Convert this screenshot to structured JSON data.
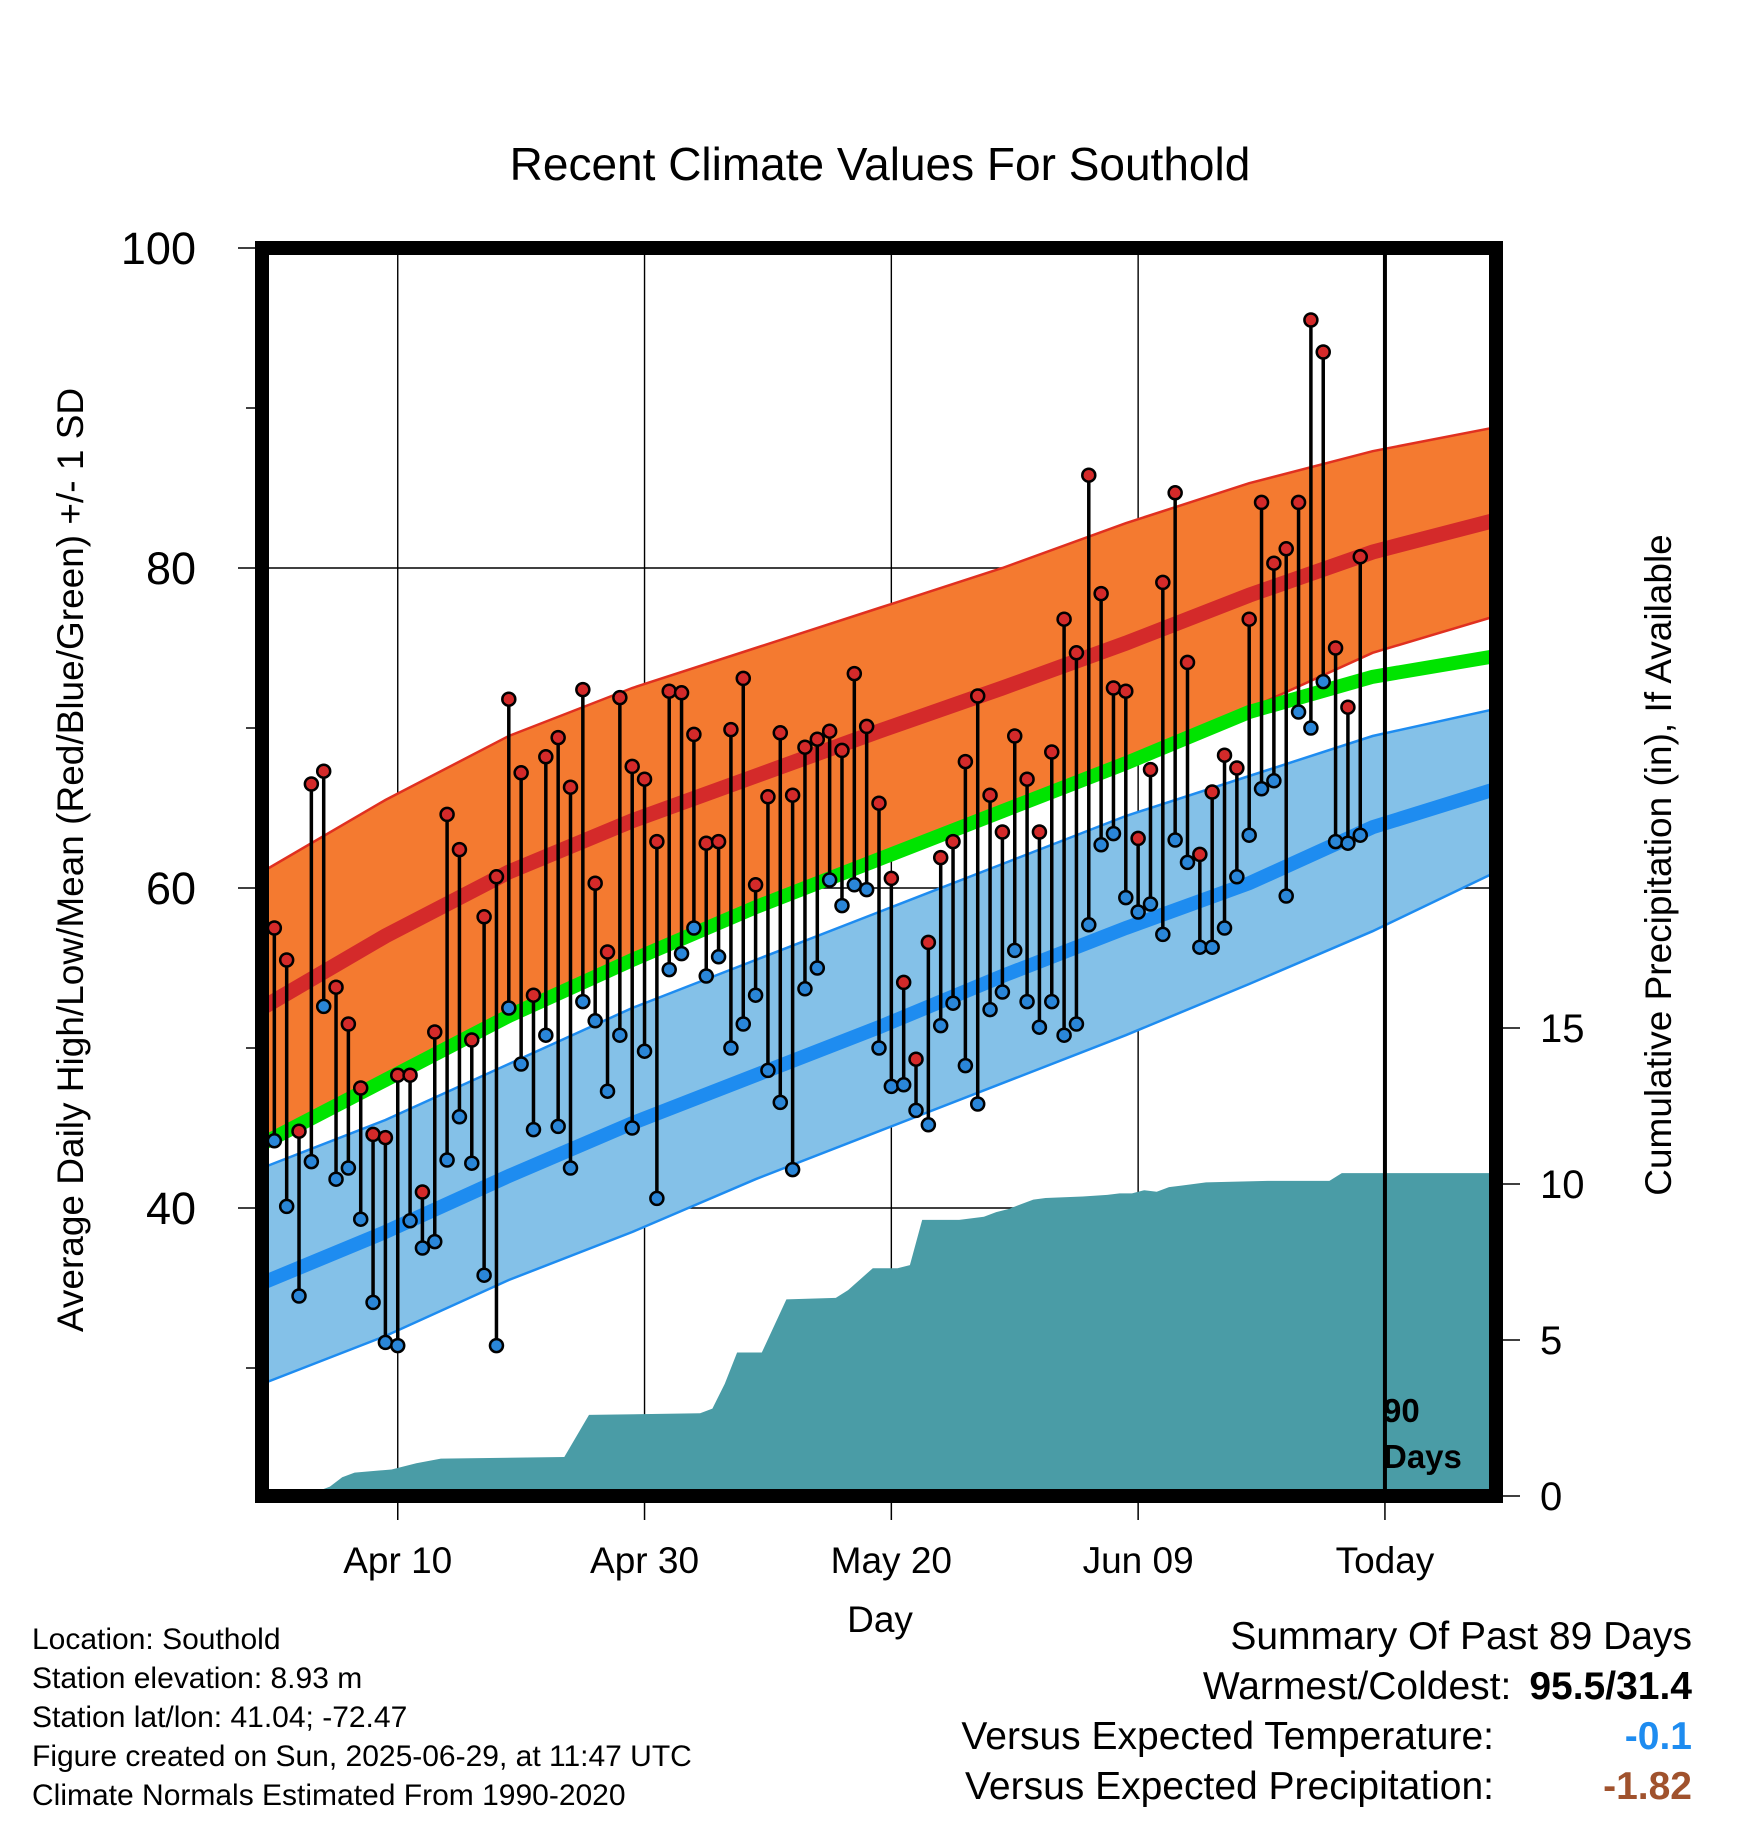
{
  "title": "Recent Climate Values For Southold",
  "y_left_label": "Average Daily High/Low/Mean (Red/Blue/Green) +/- 1 SD",
  "y_right_label": "Cumulative Precipitation (in), If Available",
  "x_label": "Day",
  "today_marker": {
    "line1": "90",
    "line2": "Days"
  },
  "colors": {
    "high_band": "#f47a30",
    "high_mean": "#d42a2a",
    "high_edge": "#e03020",
    "low_band": "#84c1e8",
    "low_mean": "#1e8cf0",
    "low_edge": "#1e8cf0",
    "mean_line": "#00e400",
    "precip": "#4a9ca6",
    "high_dot": "#d42a2a",
    "low_dot": "#2a86d8",
    "temp_anomaly": "#1e8cf0",
    "precip_anomaly": "#a0522d"
  },
  "info": {
    "location": "Location: Southold",
    "elevation": "Station elevation: 8.93 m",
    "latlon": "Station lat/lon: 41.04; -72.47",
    "created": "Figure created on Sun, 2025-06-29, at 11:47 UTC",
    "normals": "Climate Normals Estimated From 1990-2020"
  },
  "summary": {
    "title": "Summary Of Past 89 Days",
    "warm_cold_label": "Warmest/Coldest:",
    "warm_cold_value": "95.5/31.4",
    "temp_label": "Versus Expected Temperature:",
    "temp_value": "-0.1",
    "precip_label": "Versus Expected Precipitation:",
    "precip_value": "-1.82"
  },
  "chart_data": {
    "type": "line",
    "x_ticks": [
      {
        "day": 11,
        "label": "Apr 10"
      },
      {
        "day": 31,
        "label": "Apr 30"
      },
      {
        "day": 51,
        "label": "May 20"
      },
      {
        "day": 71,
        "label": "Jun 09"
      },
      {
        "day": 91,
        "label": "Today"
      }
    ],
    "xlim": [
      0,
      100
    ],
    "y_left": {
      "ylim": [
        22,
        100
      ],
      "ticks": [
        40,
        60,
        80,
        100
      ],
      "minor_ticks": [
        30,
        50,
        70,
        90
      ]
    },
    "y_right": {
      "ylim": [
        0,
        40
      ],
      "ticks": [
        0,
        5,
        10,
        15
      ]
    },
    "normals": {
      "day": [
        0,
        10,
        20,
        30,
        40,
        50,
        60,
        70,
        80,
        90,
        100
      ],
      "high_upper": [
        61.0,
        65.5,
        69.5,
        72.5,
        75.0,
        77.5,
        80.0,
        82.8,
        85.3,
        87.3,
        88.8
      ],
      "high_mean": [
        52.5,
        57.0,
        61.0,
        64.2,
        67.0,
        69.8,
        72.5,
        75.3,
        78.3,
        81.0,
        83.0
      ],
      "high_lower": [
        44.0,
        48.3,
        52.3,
        55.8,
        59.0,
        62.0,
        65.0,
        68.0,
        71.2,
        74.7,
        77.0
      ],
      "mean": [
        44.0,
        48.0,
        52.0,
        55.5,
        58.8,
        61.8,
        64.8,
        67.8,
        71.0,
        73.2,
        74.5
      ],
      "low_upper": [
        42.5,
        45.5,
        49.0,
        52.5,
        55.5,
        58.5,
        61.5,
        64.5,
        67.0,
        69.5,
        71.2
      ],
      "low_mean": [
        35.3,
        38.5,
        42.0,
        45.3,
        48.3,
        51.3,
        54.5,
        57.5,
        60.3,
        63.8,
        66.2
      ],
      "low_lower": [
        29.0,
        32.0,
        35.5,
        38.5,
        41.8,
        44.8,
        47.8,
        50.8,
        54.0,
        57.3,
        61.0
      ]
    },
    "daily": {
      "start_day": 1,
      "high": [
        57.5,
        55.5,
        44.8,
        66.5,
        67.3,
        53.8,
        51.5,
        47.5,
        44.6,
        44.4,
        48.3,
        48.3,
        41.0,
        51.0,
        64.6,
        62.4,
        50.5,
        58.2,
        60.7,
        71.8,
        67.2,
        53.3,
        68.2,
        69.4,
        66.3,
        72.4,
        60.3,
        56.0,
        71.9,
        67.6,
        66.8,
        62.9,
        72.3,
        72.2,
        69.6,
        62.8,
        62.9,
        69.9,
        73.1,
        60.2,
        65.7,
        69.7,
        65.8,
        68.8,
        69.3,
        69.8,
        68.6,
        73.4,
        70.1,
        65.3,
        60.6,
        54.1,
        49.3,
        56.6,
        61.9,
        62.9,
        67.9,
        72.0,
        65.8,
        63.5,
        69.5,
        66.8,
        63.5,
        68.5,
        76.8,
        74.7,
        85.8,
        78.4,
        72.5,
        72.3,
        63.1,
        67.4,
        79.1,
        84.7,
        74.1,
        62.1,
        66.0,
        68.3,
        67.5,
        76.8,
        84.1,
        80.3,
        81.2,
        84.1,
        95.5,
        93.5,
        75.0,
        71.3,
        80.7
      ],
      "low": [
        44.2,
        40.1,
        34.5,
        42.9,
        52.6,
        41.8,
        42.5,
        39.3,
        34.1,
        31.6,
        31.4,
        39.2,
        37.5,
        37.9,
        43.0,
        45.7,
        42.8,
        35.8,
        31.4,
        52.5,
        49.0,
        44.9,
        50.8,
        45.1,
        42.5,
        52.9,
        51.7,
        47.3,
        50.8,
        45.0,
        49.8,
        40.6,
        54.9,
        55.9,
        57.5,
        54.5,
        55.7,
        50.0,
        51.5,
        53.3,
        48.6,
        46.6,
        42.4,
        53.7,
        55.0,
        60.5,
        58.9,
        60.2,
        59.9,
        50.0,
        47.6,
        47.7,
        46.1,
        45.2,
        51.4,
        52.8,
        48.9,
        46.5,
        52.4,
        53.5,
        56.1,
        52.9,
        51.3,
        52.9,
        50.8,
        51.5,
        57.7,
        62.7,
        63.4,
        59.4,
        58.5,
        59.0,
        57.1,
        63.0,
        61.6,
        56.3,
        56.3,
        57.5,
        60.7,
        63.3,
        66.2,
        66.7,
        59.5,
        71.0,
        70.0,
        72.9,
        62.9,
        62.8,
        63.3
      ]
    },
    "precip_cumulative": {
      "day": [
        0,
        3.5,
        5.5,
        6.5,
        7.5,
        10.5,
        12.5,
        14.5,
        24.5,
        26.5,
        35.5,
        36.5,
        37.5,
        38.5,
        40.5,
        42.5,
        46.5,
        47.5,
        49.5,
        51.5,
        52.5,
        53.5,
        56.5,
        58.5,
        59.5,
        60.5,
        61.5,
        62.5,
        63.5,
        66.5,
        68.5,
        69.5,
        70.5,
        71.5,
        72.5,
        73.5,
        74.5,
        75.5,
        76.5,
        81.5,
        82.5,
        86.5,
        87.5,
        90.5,
        100
      ],
      "value": [
        0,
        0,
        0.3,
        0.6,
        0.75,
        0.85,
        1.05,
        1.2,
        1.25,
        2.6,
        2.65,
        2.8,
        3.6,
        4.6,
        4.6,
        6.3,
        6.35,
        6.6,
        7.3,
        7.3,
        7.4,
        8.85,
        8.85,
        8.95,
        9.1,
        9.2,
        9.35,
        9.5,
        9.55,
        9.6,
        9.65,
        9.7,
        9.7,
        9.8,
        9.75,
        9.9,
        9.95,
        10.0,
        10.05,
        10.1,
        10.1,
        10.1,
        10.35,
        10.35,
        10.35
      ]
    }
  }
}
